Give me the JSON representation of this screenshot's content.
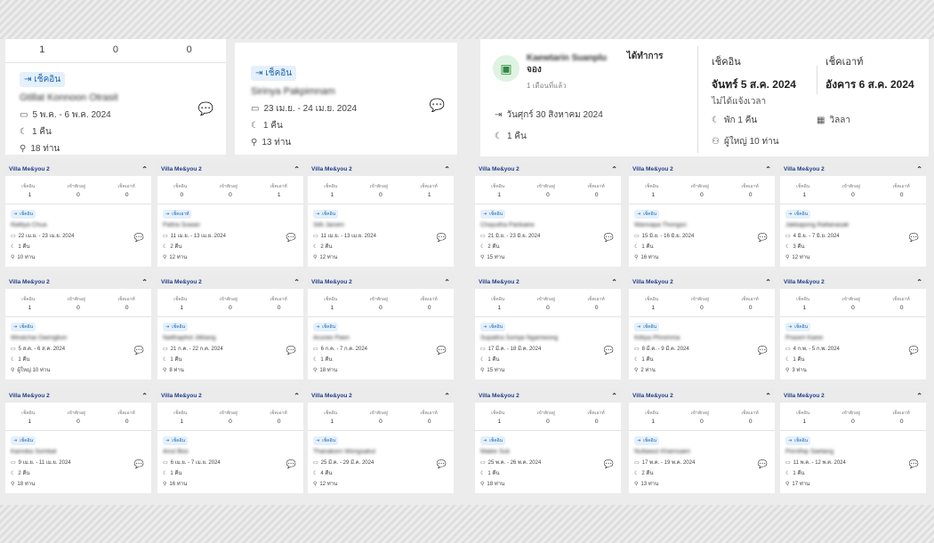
{
  "top_left": {
    "stats": [
      "1",
      "0",
      "0"
    ],
    "badge": "เช็คอิน",
    "name": "Gtillat Konnoon Otrasit",
    "dates": "5 พ.ค. - 6 พ.ค. 2024",
    "nights": "1 คืน",
    "guests": "18 ท่าน"
  },
  "top_mid": {
    "badge": "เช็คอิน",
    "name": "Sirinya Pakpimnam",
    "dates": "23 เม.ย. - 24 เม.ย. 2024",
    "nights": "1 คืน",
    "guests": "13 ท่าน"
  },
  "top_right": {
    "booker_blur": "Kaewtarin Suanplu",
    "booker_suffix": "ได้ทำการ",
    "booker_line2": "จอง",
    "ago": "1 เดือนที่แล้ว",
    "checkin_date": "วันศุกร์ 30 สิงหาคม 2024",
    "nights": "1 คืน",
    "checkin_label": "เช็คอิน",
    "checkin_value": "จันทร์ 5 ส.ค. 2024",
    "checkin_note": "ไม่ได้แจ้งเวลา",
    "checkout_label": "เช็คเอาท์",
    "checkout_value": "อังคาร 6 ส.ค. 2024",
    "stay": "พัก 1 คืน",
    "type": "วิลลา",
    "adults": "ผู้ใหญ่ 10 ท่าน"
  },
  "card_labels": {
    "villa": "Villa Me&you 2",
    "col1": "เช็คอิน",
    "col2": "เข้าพักอยู่",
    "col3": "เช็คเอาท์",
    "checkin": "เช็คอิน",
    "checkout": "เช็คเอาท์"
  },
  "cards": [
    {
      "v": [
        "1",
        "0",
        "0"
      ],
      "badge": "เช็คอิน",
      "name": "Rattiya Chua",
      "dates": "22 เม.ย. - 23 เม.ย. 2024",
      "nights": "1 คืน",
      "guests": "10 ท่าน"
    },
    {
      "v": [
        "0",
        "0",
        "1"
      ],
      "badge": "เช็คเอาท์",
      "name": "Pattra Suwan",
      "dates": "11 เม.ย. - 13 เม.ย. 2024",
      "nights": "2 คืน",
      "guests": "12 ท่าน"
    },
    {
      "v": [
        "1",
        "0",
        "1"
      ],
      "badge": "เช็คอิน",
      "name": "Sitti Jaroen",
      "dates": "11 เม.ย. - 13 เม.ย. 2024",
      "nights": "2 คืน",
      "guests": "12 ท่าน"
    },
    {
      "v": [
        "1",
        "0",
        "0"
      ],
      "badge": "เช็คอิน",
      "name": "Wiratchai Daengbun",
      "dates": "5 ส.ค. - 6 ส.ค. 2024",
      "nights": "1 คืน",
      "guests": "ผู้ใหญ่ 10 ท่าน"
    },
    {
      "v": [
        "1",
        "0",
        "0"
      ],
      "badge": "เช็คอิน",
      "name": "Natthaphol Jitklang",
      "dates": "21 ก.ค. - 22 ก.ค. 2024",
      "nights": "1 คืน",
      "guests": "8 ท่าน"
    },
    {
      "v": [
        "1",
        "0",
        "0"
      ],
      "badge": "เช็คอิน",
      "name": "Arunee Paen",
      "dates": "6 ก.ค. - 7 ก.ค. 2024",
      "nights": "1 คืน",
      "guests": "18 ท่าน"
    },
    {
      "v": [
        "1",
        "0",
        "0"
      ],
      "badge": "เช็คอิน",
      "name": "Kannika Sombat",
      "dates": "9 เม.ย. - 11 เม.ย. 2024",
      "nights": "2 คืน",
      "guests": "18 ท่าน"
    },
    {
      "v": [
        "1",
        "0",
        "0"
      ],
      "badge": "เช็คอิน",
      "name": "Anut Boo",
      "dates": "6 เม.ย. - 7 เม.ย. 2024",
      "nights": "1 คืน",
      "guests": "16 ท่าน"
    },
    {
      "v": [
        "1",
        "0",
        "0"
      ],
      "badge": "เช็คอิน",
      "name": "Thanakorn Wongsakul",
      "dates": "25 มี.ค. - 29 มี.ค. 2024",
      "nights": "4 คืน",
      "guests": "12 ท่าน"
    },
    {
      "v": [
        "1",
        "0",
        "0"
      ],
      "badge": "เช็คอิน",
      "name": "Chayutha Pankaew",
      "dates": "21 มิ.ย. - 23 มิ.ย. 2024",
      "nights": "2 คืน",
      "guests": "15 ท่าน"
    },
    {
      "v": [
        "1",
        "0",
        "0"
      ],
      "badge": "เช็คอิน",
      "name": "Wannapa Thongsri",
      "dates": "15 มิ.ย. - 16 มิ.ย. 2024",
      "nights": "1 คืน",
      "guests": "16 ท่าน"
    },
    {
      "v": [
        "1",
        "0",
        "0"
      ],
      "badge": "เช็คอิน",
      "name": "Jakkapong Rattanasak",
      "dates": "4 มิ.ย. - 7 มิ.ย. 2024",
      "nights": "3 คืน",
      "guests": "12 ท่าน"
    },
    {
      "v": [
        "1",
        "0",
        "0"
      ],
      "badge": "เช็คอิน",
      "name": "Supattra Somjai Ngamwong",
      "dates": "17 มี.ค. - 18 มี.ค. 2024",
      "nights": "1 คืน",
      "guests": "15 ท่าน"
    },
    {
      "v": [
        "1",
        "0",
        "0"
      ],
      "badge": "เช็คอิน",
      "name": "Kittiya Phromma",
      "dates": "8 มี.ค. - 9 มี.ค. 2024",
      "nights": "1 คืน",
      "guests": "2 ท่าน"
    },
    {
      "v": [
        "1",
        "0",
        "0"
      ],
      "badge": "เช็คอิน",
      "name": "Prasert Kaew",
      "dates": "4 ก.พ. - 5 ก.พ. 2024",
      "nights": "1 คืน",
      "guests": "3 ท่าน"
    },
    {
      "v": [
        "1",
        "0",
        "0"
      ],
      "badge": "เช็คอิน",
      "name": "Malee Suk",
      "dates": "25 พ.ค. - 26 พ.ค. 2024",
      "nights": "1 คืน",
      "guests": "18 ท่าน"
    },
    {
      "v": [
        "1",
        "0",
        "0"
      ],
      "badge": "เช็คอิน",
      "name": "Nuttawut Khamsaen",
      "dates": "17 พ.ค. - 19 พ.ค. 2024",
      "nights": "2 คืน",
      "guests": "13 ท่าน"
    },
    {
      "v": [
        "1",
        "0",
        "0"
      ],
      "badge": "เช็คอิน",
      "name": "Pornthip Saetang",
      "dates": "11 พ.ค. - 12 พ.ค. 2024",
      "nights": "1 คืน",
      "guests": "17 ท่าน"
    }
  ]
}
